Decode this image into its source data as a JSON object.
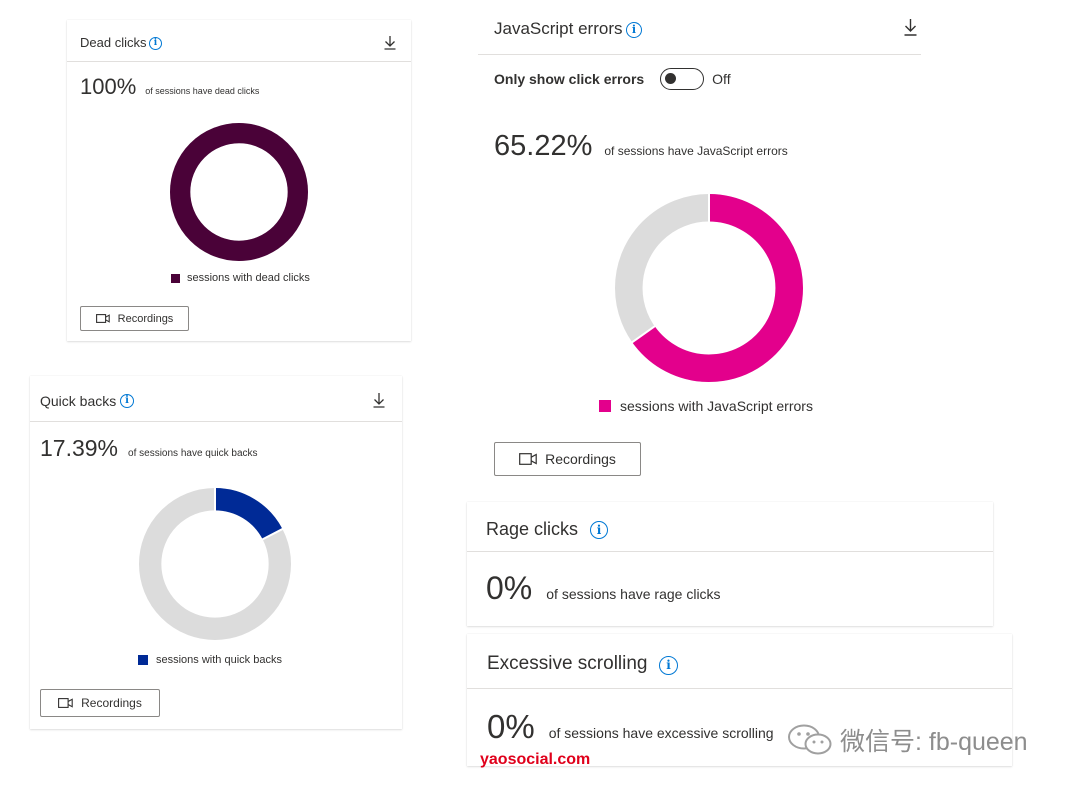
{
  "dead_clicks": {
    "title": "Dead clicks",
    "percent_text": "100%",
    "subtitle": "of sessions have dead clicks",
    "fraction": 1.0,
    "legend": "sessions with dead clicks",
    "button": "Recordings",
    "color": "#4a0238",
    "track_color": "#dcdcdc"
  },
  "quick_backs": {
    "title": "Quick backs",
    "percent_text": "17.39%",
    "subtitle": "of sessions have quick backs",
    "fraction": 0.1739,
    "legend": "sessions with quick backs",
    "button": "Recordings",
    "color": "#002a96",
    "track_color": "#dcdcdc"
  },
  "js_errors": {
    "title": "JavaScript errors",
    "toggle_label": "Only show click errors",
    "toggle_state": "Off",
    "percent_text": "65.22%",
    "subtitle": "of sessions have JavaScript errors",
    "fraction": 0.6522,
    "legend": "sessions with JavaScript errors",
    "button": "Recordings",
    "color": "#e3008c",
    "track_color": "#dcdcdc"
  },
  "rage_clicks": {
    "title": "Rage clicks",
    "percent_text": "0%",
    "subtitle": "of sessions have rage clicks"
  },
  "excessive_scrolling": {
    "title": "Excessive scrolling",
    "percent_text": "0%",
    "subtitle": "of sessions have excessive scrolling"
  },
  "watermark": {
    "text": "微信号: fb-queen",
    "brand": "yaosocial.com",
    "brand_color": "#e0001b"
  },
  "icons": {
    "info": "info-icon",
    "download": "download-icon",
    "recordings": "video-camera-icon",
    "wechat": "wechat-icon"
  }
}
